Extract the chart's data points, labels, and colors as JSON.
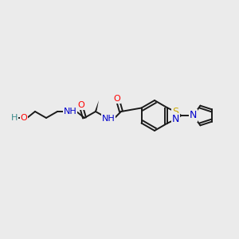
{
  "background_color": "#ebebeb",
  "bond_color": "#1a1a1a",
  "atom_colors": {
    "O": "#ff0000",
    "N": "#0000cc",
    "S": "#ccaa00",
    "H": "#3a8a8a",
    "C": "#1a1a1a"
  },
  "figsize": [
    3.0,
    3.0
  ],
  "dpi": 100,
  "lw": 1.4
}
